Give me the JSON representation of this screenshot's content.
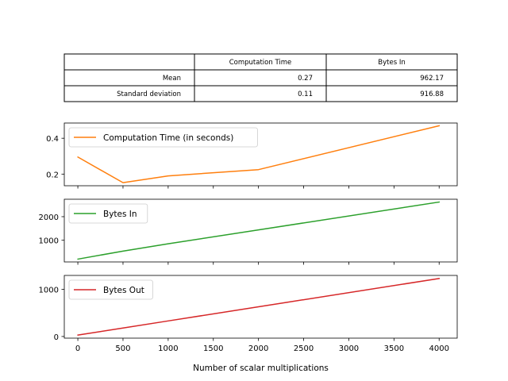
{
  "summary_table": {
    "columns": [
      "",
      "Computation Time",
      "Bytes In"
    ],
    "rows": [
      {
        "label": "Mean",
        "computation_time": "0.27",
        "bytes_in": "962.17"
      },
      {
        "label": "Standard deviation",
        "computation_time": "0.11",
        "bytes_in": "916.88"
      }
    ]
  },
  "chart_data": [
    {
      "type": "line",
      "legend_location": "upper-left",
      "series": [
        {
          "name": "Computation Time (in seconds)",
          "color": "#ff7f0e",
          "x": [
            1,
            500,
            1000,
            2000,
            4000
          ],
          "y": [
            0.295,
            0.152,
            0.19,
            0.225,
            0.47
          ]
        }
      ],
      "xlim": [
        -150,
        4200
      ],
      "ylim": [
        0.135,
        0.485
      ],
      "yticks": [
        0.2,
        0.4
      ],
      "ytick_labels": [
        "0.2",
        "0.4"
      ],
      "show_xtick_labels": false
    },
    {
      "type": "line",
      "legend_location": "upper-left",
      "series": [
        {
          "name": "Bytes In",
          "color": "#2ca02c",
          "x": [
            1,
            500,
            1000,
            2000,
            4000
          ],
          "y": [
            200,
            540,
            850,
            1440,
            2620
          ]
        }
      ],
      "xlim": [
        -150,
        4200
      ],
      "ylim": [
        80,
        2740
      ],
      "yticks": [
        1000,
        2000
      ],
      "ytick_labels": [
        "1000",
        "2000"
      ],
      "show_xtick_labels": false
    },
    {
      "type": "line",
      "legend_location": "upper-left",
      "series": [
        {
          "name": "Bytes Out",
          "color": "#d62728",
          "x": [
            1,
            500,
            1000,
            2000,
            4000
          ],
          "y": [
            30,
            180,
            330,
            630,
            1230
          ]
        }
      ],
      "xlim": [
        -150,
        4200
      ],
      "ylim": [
        -35,
        1295
      ],
      "yticks": [
        0,
        1000
      ],
      "ytick_labels": [
        "0",
        "1000"
      ],
      "show_xtick_labels": true,
      "xticks": [
        0,
        500,
        1000,
        1500,
        2000,
        2500,
        3000,
        3500,
        4000
      ],
      "xtick_labels": [
        "0",
        "500",
        "1000",
        "1500",
        "2000",
        "2500",
        "3000",
        "3500",
        "4000"
      ],
      "xlabel": "Number of scalar multiplications"
    }
  ]
}
